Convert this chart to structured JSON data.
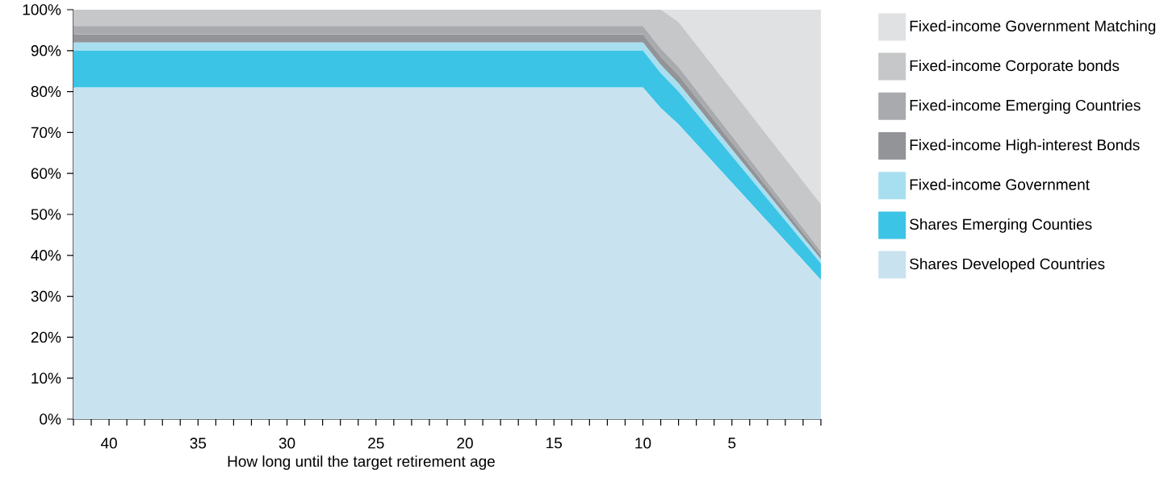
{
  "chart_data": {
    "type": "area",
    "stacked": true,
    "xlabel": "How long until the target retirement age",
    "x": [
      42,
      10,
      9,
      8,
      0
    ],
    "xlim": [
      42,
      0
    ],
    "xticks": [
      {
        "value": 0,
        "label": null
      },
      {
        "value": 1,
        "label": null
      },
      {
        "value": 2,
        "label": null
      },
      {
        "value": 3,
        "label": null
      },
      {
        "value": 4,
        "label": null
      },
      5,
      {
        "value": 6,
        "label": null
      },
      {
        "value": 7,
        "label": null
      },
      {
        "value": 8,
        "label": null
      },
      {
        "value": 9,
        "label": null
      },
      10,
      {
        "value": 11,
        "label": null
      },
      {
        "value": 12,
        "label": null
      },
      {
        "value": 13,
        "label": null
      },
      {
        "value": 14,
        "label": null
      },
      15,
      {
        "value": 16,
        "label": null
      },
      {
        "value": 17,
        "label": null
      },
      {
        "value": 18,
        "label": null
      },
      {
        "value": 19,
        "label": null
      },
      20,
      {
        "value": 21,
        "label": null
      },
      {
        "value": 22,
        "label": null
      },
      {
        "value": 23,
        "label": null
      },
      {
        "value": 24,
        "label": null
      },
      25,
      {
        "value": 26,
        "label": null
      },
      {
        "value": 27,
        "label": null
      },
      {
        "value": 28,
        "label": null
      },
      {
        "value": 29,
        "label": null
      },
      30,
      {
        "value": 31,
        "label": null
      },
      {
        "value": 32,
        "label": null
      },
      {
        "value": 33,
        "label": null
      },
      {
        "value": 34,
        "label": null
      },
      35,
      {
        "value": 36,
        "label": null
      },
      {
        "value": 37,
        "label": null
      },
      {
        "value": 38,
        "label": null
      },
      {
        "value": 39,
        "label": null
      },
      40,
      {
        "value": 41,
        "label": null
      },
      {
        "value": 42,
        "label": null
      }
    ],
    "ylim": [
      0,
      100
    ],
    "yticks": [
      {
        "value": 0,
        "label": "0%"
      },
      {
        "value": 10,
        "label": "10%"
      },
      {
        "value": 20,
        "label": "20%"
      },
      {
        "value": 30,
        "label": "30%"
      },
      {
        "value": 40,
        "label": "40%"
      },
      {
        "value": 50,
        "label": "50%"
      },
      {
        "value": 60,
        "label": "60%"
      },
      {
        "value": 70,
        "label": "70%"
      },
      {
        "value": 80,
        "label": "80%"
      },
      {
        "value": 90,
        "label": "90%"
      },
      {
        "value": 100,
        "label": "100%"
      }
    ],
    "grid": false,
    "legend": "right",
    "series": [
      {
        "name": "Shares Developed Countries",
        "color": "#c9e2ef",
        "values": [
          81,
          81,
          76,
          72,
          34
        ]
      },
      {
        "name": "Shares Emerging Counties",
        "color": "#3cc4e6",
        "values": [
          9,
          9,
          8.5,
          8,
          4
        ]
      },
      {
        "name": "Fixed-income Government",
        "color": "#a8dff0",
        "values": [
          2,
          2,
          2,
          2,
          1
        ]
      },
      {
        "name": "Fixed-income High-interest Bonds",
        "color": "#939498",
        "values": [
          2,
          2,
          2,
          2,
          1
        ]
      },
      {
        "name": "Fixed-income Emerging Countries",
        "color": "#a9aaae",
        "values": [
          2,
          2,
          2,
          2,
          1
        ]
      },
      {
        "name": "Fixed-income Corporate bonds",
        "color": "#c6c7c9",
        "values": [
          4,
          4,
          9.5,
          11,
          11.5
        ]
      },
      {
        "name": "Fixed-income Government Matching",
        "color": "#e0e1e3",
        "values": [
          0,
          0,
          0,
          3,
          47.5
        ]
      }
    ]
  }
}
